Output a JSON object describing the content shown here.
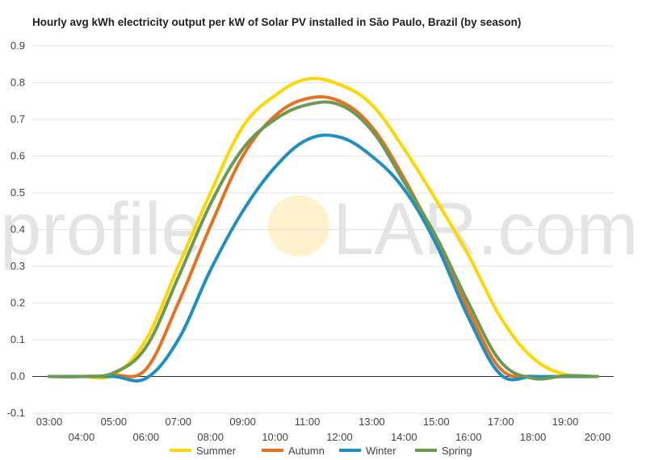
{
  "chart_data": {
    "type": "line",
    "title": "Hourly avg kWh electricity output per kW of Solar PV installed in São Paulo, Brazil (by season)",
    "xlabel": "",
    "ylabel": "",
    "ylim": [
      -0.1,
      0.9
    ],
    "yticks": [
      "-0.1",
      "0.0",
      "0.1",
      "0.2",
      "0.3",
      "0.4",
      "0.5",
      "0.6",
      "0.7",
      "0.8",
      "0.9"
    ],
    "x": [
      "03:00",
      "04:00",
      "05:00",
      "06:00",
      "07:00",
      "08:00",
      "09:00",
      "10:00",
      "11:00",
      "12:00",
      "13:00",
      "14:00",
      "15:00",
      "16:00",
      "17:00",
      "18:00",
      "19:00",
      "20:00"
    ],
    "grid": true,
    "legend": "bottom",
    "series": [
      {
        "name": "Summer",
        "color": "#ffd700",
        "values": [
          0,
          0,
          0.005,
          0.1,
          0.3,
          0.5,
          0.68,
          0.765,
          0.81,
          0.795,
          0.74,
          0.62,
          0.48,
          0.33,
          0.16,
          0.05,
          0.005,
          0
        ]
      },
      {
        "name": "Autumn",
        "color": "#e8711f",
        "values": [
          0,
          0,
          0.003,
          0.02,
          0.2,
          0.41,
          0.6,
          0.71,
          0.757,
          0.75,
          0.68,
          0.54,
          0.37,
          0.18,
          0.02,
          0,
          0,
          0
        ]
      },
      {
        "name": "Winter",
        "color": "#1e8fc2",
        "values": [
          0,
          0,
          0,
          -0.005,
          0.1,
          0.29,
          0.45,
          0.57,
          0.645,
          0.652,
          0.6,
          0.51,
          0.36,
          0.16,
          0.005,
          0,
          0,
          0
        ]
      },
      {
        "name": "Spring",
        "color": "#6c9a50",
        "values": [
          0,
          0,
          0.01,
          0.08,
          0.27,
          0.47,
          0.62,
          0.7,
          0.74,
          0.74,
          0.67,
          0.53,
          0.38,
          0.2,
          0.04,
          -0.005,
          0.002,
          0
        ]
      }
    ],
    "watermark": {
      "left": "profile",
      "right": "LAR.com"
    }
  }
}
